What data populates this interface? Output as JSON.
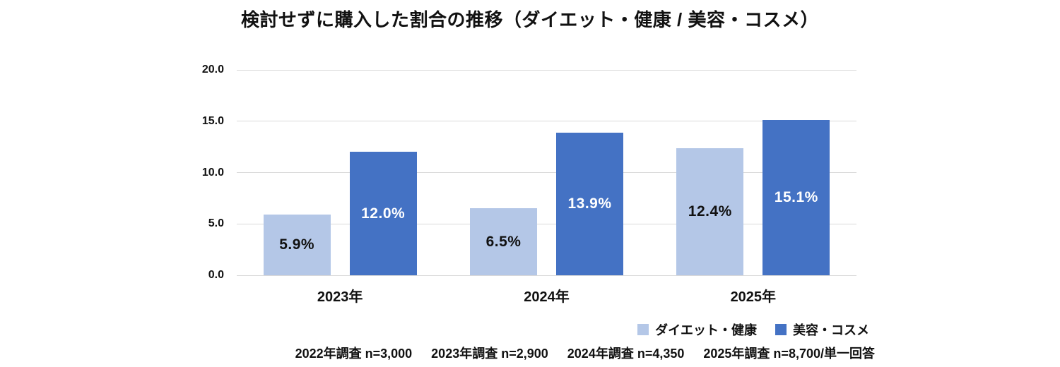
{
  "page": {
    "background_color": "#ffffff",
    "text_color": "#111111"
  },
  "chart_data": {
    "type": "bar",
    "title": "検討せずに購入した割合の推移（ダイエット・健康 / 美容・コスメ）",
    "categories": [
      "2023年",
      "2024年",
      "2025年"
    ],
    "series": [
      {
        "name": "ダイエット・健康",
        "color": "#b4c7e7",
        "label_color": "#111111",
        "values": [
          5.9,
          6.5,
          12.4
        ]
      },
      {
        "name": "美容・コスメ",
        "color": "#4472c4",
        "label_color": "#ffffff",
        "values": [
          12.0,
          13.9,
          15.1
        ]
      }
    ],
    "value_labels": [
      [
        "5.9%",
        "6.5%",
        "12.4%"
      ],
      [
        "12.0%",
        "13.9%",
        "15.1%"
      ]
    ],
    "ylim": [
      0,
      20
    ],
    "yticks": [
      0,
      5,
      10,
      15,
      20
    ],
    "ytick_labels": [
      "0.0",
      "5.0",
      "10.0",
      "15.0",
      "20.0"
    ],
    "grid": true,
    "gridline_color": "#d9d9d9",
    "legend_position": "bottom-right",
    "xlabel": "",
    "ylabel": ""
  },
  "footnote": {
    "segments": [
      "2022年調査 n=3,000",
      "2023年調査 n=2,900",
      "2024年調査 n=4,350",
      "2025年調査 n=8,700/単一回答"
    ]
  }
}
